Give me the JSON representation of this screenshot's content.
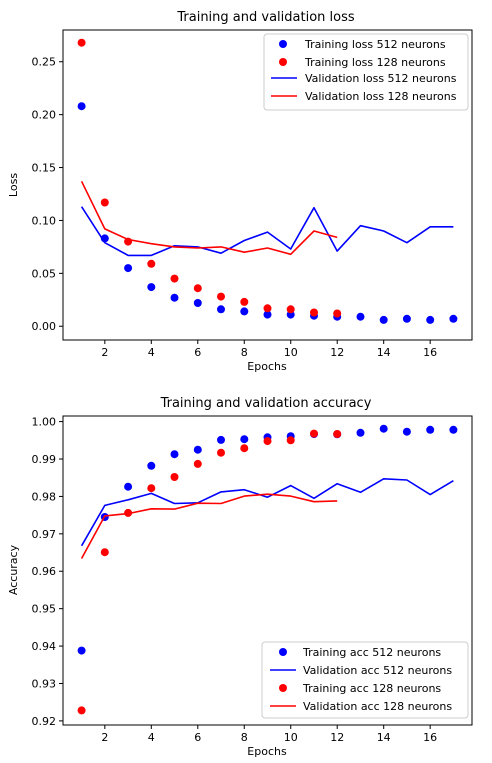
{
  "chart_data": [
    {
      "type": "scatter+line",
      "title": "Training and validation loss",
      "xlabel": "Epochs",
      "ylabel": "Loss",
      "xlim": [
        0.2,
        17.8
      ],
      "ylim": [
        -0.013,
        0.28
      ],
      "xticks": [
        2,
        4,
        6,
        8,
        10,
        12,
        14,
        16
      ],
      "yticks": [
        0.0,
        0.05,
        0.1,
        0.15,
        0.2,
        0.25
      ],
      "ytick_labels": [
        "0.00",
        "0.05",
        "0.10",
        "0.15",
        "0.20",
        "0.25"
      ],
      "grid": false,
      "legend_position": "top-right",
      "series": [
        {
          "name": "Training loss 512 neurons",
          "kind": "scatter",
          "color": "#0000ff",
          "x": [
            1,
            2,
            3,
            4,
            5,
            6,
            7,
            8,
            9,
            10,
            11,
            12,
            13,
            14,
            15,
            16,
            17
          ],
          "y": [
            0.208,
            0.083,
            0.055,
            0.037,
            0.027,
            0.022,
            0.016,
            0.014,
            0.011,
            0.011,
            0.01,
            0.009,
            0.009,
            0.006,
            0.007,
            0.006,
            0.007
          ]
        },
        {
          "name": "Training loss 128 neurons",
          "kind": "scatter",
          "color": "#ff0000",
          "x": [
            1,
            2,
            3,
            4,
            5,
            6,
            7,
            8,
            9,
            10,
            11,
            12
          ],
          "y": [
            0.268,
            0.117,
            0.08,
            0.059,
            0.045,
            0.036,
            0.028,
            0.023,
            0.017,
            0.016,
            0.013,
            0.012
          ]
        },
        {
          "name": "Validation loss 512 neurons",
          "kind": "line",
          "color": "#0000ff",
          "x": [
            1,
            2,
            3,
            4,
            5,
            6,
            7,
            8,
            9,
            10,
            11,
            12,
            13,
            14,
            15,
            16,
            17
          ],
          "y": [
            0.113,
            0.079,
            0.067,
            0.067,
            0.076,
            0.075,
            0.069,
            0.081,
            0.089,
            0.073,
            0.112,
            0.071,
            0.095,
            0.09,
            0.079,
            0.094,
            0.094
          ]
        },
        {
          "name": "Validation loss 128 neurons",
          "kind": "line",
          "color": "#ff0000",
          "x": [
            1,
            2,
            3,
            4,
            5,
            6,
            7,
            8,
            9,
            10,
            11,
            12
          ],
          "y": [
            0.137,
            0.092,
            0.082,
            0.078,
            0.075,
            0.074,
            0.075,
            0.07,
            0.074,
            0.068,
            0.09,
            0.084
          ]
        }
      ]
    },
    {
      "type": "scatter+line",
      "title": "Training and validation accuracy",
      "xlabel": "Epochs",
      "ylabel": "Accuracy",
      "xlim": [
        0.2,
        17.8
      ],
      "ylim": [
        0.9189,
        1.0015
      ],
      "xticks": [
        2,
        4,
        6,
        8,
        10,
        12,
        14,
        16
      ],
      "yticks": [
        0.92,
        0.93,
        0.94,
        0.95,
        0.96,
        0.97,
        0.98,
        0.99,
        1.0
      ],
      "ytick_labels": [
        "0.92",
        "0.93",
        "0.94",
        "0.95",
        "0.96",
        "0.97",
        "0.98",
        "0.99",
        "1.00"
      ],
      "grid": false,
      "legend_position": "bottom-right",
      "series": [
        {
          "name": "Training acc 512 neurons",
          "kind": "scatter",
          "color": "#0000ff",
          "x": [
            1,
            2,
            3,
            4,
            5,
            6,
            7,
            8,
            9,
            10,
            11,
            12,
            13,
            14,
            15,
            16,
            17
          ],
          "y": [
            0.9388,
            0.9745,
            0.9826,
            0.9882,
            0.9913,
            0.9925,
            0.9951,
            0.9953,
            0.9958,
            0.9961,
            0.9967,
            0.9966,
            0.997,
            0.9981,
            0.9973,
            0.9978,
            0.9978
          ]
        },
        {
          "name": "Validation acc 512 neurons",
          "kind": "line",
          "color": "#0000ff",
          "x": [
            1,
            2,
            3,
            4,
            5,
            6,
            7,
            8,
            9,
            10,
            11,
            12,
            13,
            14,
            15,
            16,
            17
          ],
          "y": [
            0.9668,
            0.9776,
            0.9791,
            0.9808,
            0.9781,
            0.9783,
            0.9812,
            0.9818,
            0.9798,
            0.9829,
            0.9795,
            0.9834,
            0.9811,
            0.9847,
            0.9844,
            0.9805,
            0.9842
          ]
        },
        {
          "name": "Training acc 128 neurons",
          "kind": "scatter",
          "color": "#ff0000",
          "x": [
            1,
            2,
            3,
            4,
            5,
            6,
            7,
            8,
            9,
            10,
            11,
            12
          ],
          "y": [
            0.9228,
            0.9651,
            0.9756,
            0.9822,
            0.9852,
            0.9887,
            0.9917,
            0.9929,
            0.9948,
            0.995,
            0.9968,
            0.9967
          ]
        },
        {
          "name": "Validation acc 128 neurons",
          "kind": "line",
          "color": "#ff0000",
          "x": [
            1,
            2,
            3,
            4,
            5,
            6,
            7,
            8,
            9,
            10,
            11,
            12
          ],
          "y": [
            0.9634,
            0.9748,
            0.9754,
            0.9767,
            0.9766,
            0.9782,
            0.9781,
            0.9801,
            0.9806,
            0.9801,
            0.9786,
            0.9788
          ]
        }
      ]
    }
  ]
}
